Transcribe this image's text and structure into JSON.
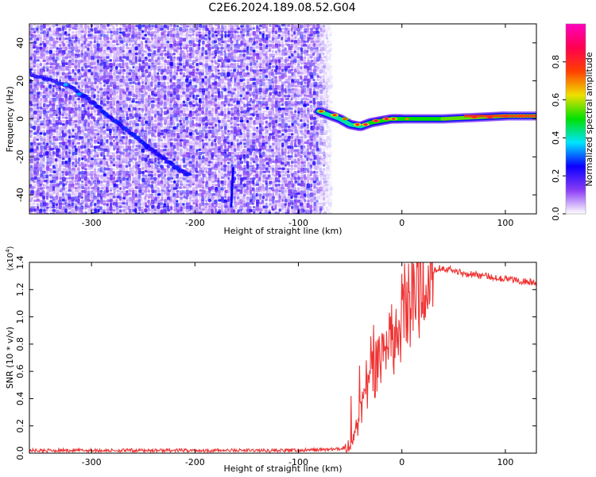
{
  "figure": {
    "title": "C2E6.2024.189.08.52.G04"
  },
  "chart_data": [
    {
      "type": "heatmap",
      "xlabel": "Height of straight line (km)",
      "ylabel": "Frequency (Hz)",
      "xlim": [
        -360,
        130
      ],
      "ylim": [
        -50,
        50
      ],
      "x_ticks": [
        -300,
        -200,
        -100,
        0,
        100
      ],
      "y_ticks": [
        -40,
        -20,
        0,
        20,
        40
      ],
      "colorbar": {
        "label": "Normalized spectral amplitude",
        "range": [
          0.0,
          1.0
        ],
        "ticks": [
          0.0,
          0.2,
          0.4,
          0.6,
          0.8
        ],
        "colormap": [
          "#ffffff",
          "#8a3cf5",
          "#0b00ff",
          "#00e5ff",
          "#00e000",
          "#f0e000",
          "#ff4000",
          "#ff0050",
          "#ff00c0"
        ]
      },
      "features": {
        "noise_region_x": [
          -360,
          -70
        ],
        "diagonal_track": [
          [
            -360,
            24
          ],
          [
            -320,
            17
          ],
          [
            -300,
            9
          ],
          [
            -280,
            0
          ],
          [
            -260,
            -8
          ],
          [
            -240,
            -17
          ],
          [
            -220,
            -25
          ],
          [
            -205,
            -30
          ]
        ],
        "vertical_streak": {
          "x": -165,
          "y": [
            -46,
            -26
          ]
        },
        "signal_line": [
          [
            -80,
            4
          ],
          [
            -70,
            2
          ],
          [
            -60,
            0
          ],
          [
            -50,
            -3
          ],
          [
            -40,
            -4
          ],
          [
            -30,
            -2
          ],
          [
            -20,
            -1
          ],
          [
            -10,
            0
          ],
          [
            0,
            0
          ],
          [
            20,
            0
          ],
          [
            40,
            0
          ],
          [
            60,
            0.5
          ],
          [
            80,
            1
          ],
          [
            100,
            1.5
          ],
          [
            130,
            1.5
          ]
        ]
      }
    },
    {
      "type": "line",
      "xlabel": "Height of straight line (km)",
      "ylabel": "SNR (10 * v/v)",
      "y_multiplier": "(x10^4)",
      "xlim": [
        -360,
        130
      ],
      "ylim": [
        0,
        1.4
      ],
      "x_ticks": [
        -300,
        -200,
        -100,
        0,
        100
      ],
      "y_ticks": [
        0.0,
        0.2,
        0.4,
        0.6,
        0.8,
        1.0,
        1.2,
        1.4
      ],
      "color": "#ee3333",
      "series": [
        {
          "x": [
            -360,
            -300,
            -200,
            -100,
            -60,
            -50,
            -45,
            -40,
            -35,
            -30,
            -25,
            -20,
            -15,
            -10,
            -5,
            0,
            5,
            10,
            15,
            20,
            25,
            30,
            35,
            40,
            50,
            60,
            80,
            100,
            110,
            120,
            130
          ],
          "values": [
            0.02,
            0.02,
            0.02,
            0.02,
            0.03,
            0.06,
            0.15,
            0.3,
            0.45,
            0.55,
            0.62,
            0.72,
            0.8,
            0.85,
            0.92,
            1.0,
            1.05,
            1.1,
            1.15,
            1.22,
            1.3,
            1.34,
            1.36,
            1.36,
            1.34,
            1.32,
            1.3,
            1.28,
            1.27,
            1.26,
            1.25
          ]
        }
      ]
    }
  ]
}
